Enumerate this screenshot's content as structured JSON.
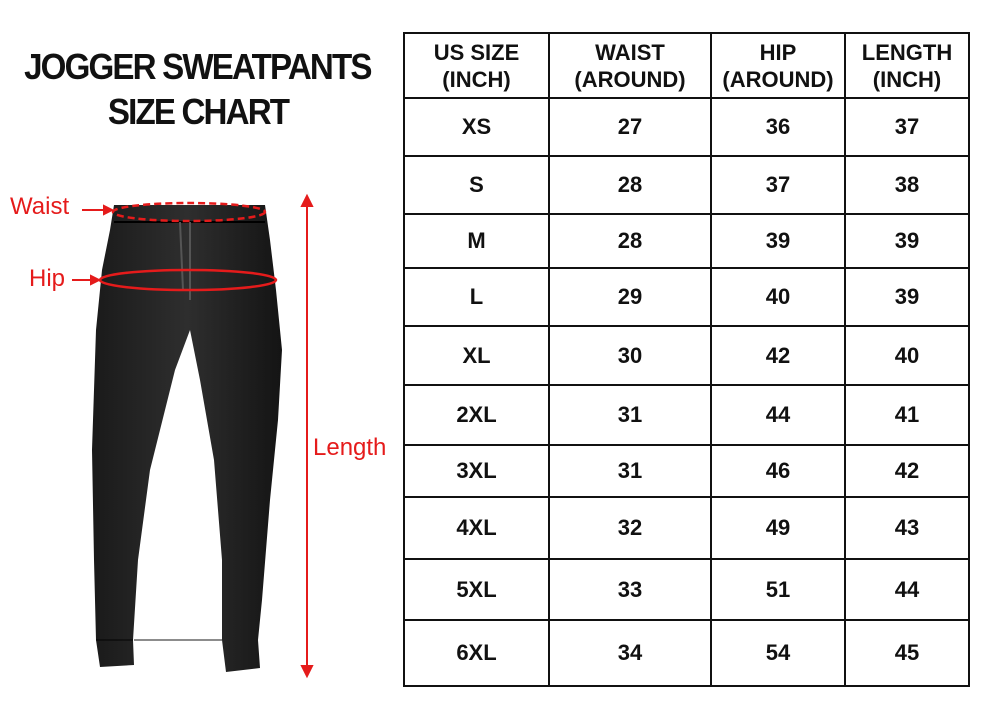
{
  "title": {
    "line1": "JOGGER SWEATPANTS",
    "line2": "SIZE CHART"
  },
  "diagram": {
    "waist_label": "Waist",
    "hip_label": "Hip",
    "length_label": "Length",
    "accent_color": "#e51b1b"
  },
  "table": {
    "headers": [
      [
        "US SIZE",
        "(INCH)"
      ],
      [
        "WAIST",
        "(AROUND)"
      ],
      [
        "HIP",
        "(AROUND)"
      ],
      [
        "LENGTH",
        "(INCH)"
      ]
    ],
    "rows": [
      [
        "XS",
        "27",
        "36",
        "37"
      ],
      [
        "S",
        "28",
        "37",
        "38"
      ],
      [
        "M",
        "28",
        "39",
        "39"
      ],
      [
        "L",
        "29",
        "40",
        "39"
      ],
      [
        "XL",
        "30",
        "42",
        "40"
      ],
      [
        "2XL",
        "31",
        "44",
        "41"
      ],
      [
        "3XL",
        "31",
        "46",
        "42"
      ],
      [
        "4XL",
        "32",
        "49",
        "43"
      ],
      [
        "5XL",
        "33",
        "51",
        "44"
      ],
      [
        "6XL",
        "34",
        "54",
        "45"
      ]
    ]
  }
}
